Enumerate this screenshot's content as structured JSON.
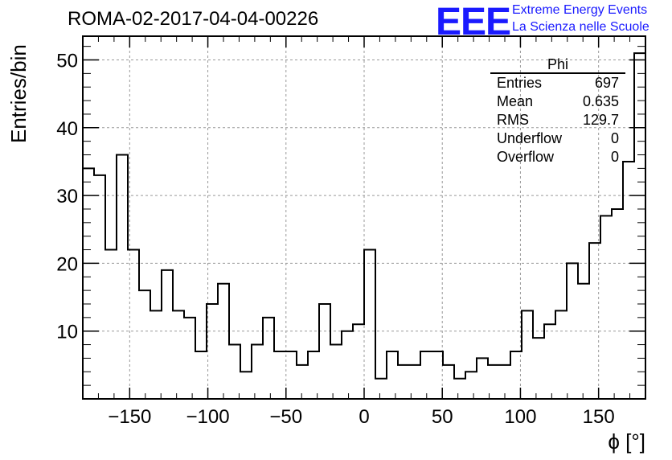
{
  "header": {
    "run_title": "ROMA-02-2017-04-04-00226",
    "logo_text": "EEE",
    "logo_line1": "Extreme Energy Events",
    "logo_line2": "La Scienza nelle Scuole",
    "logo_color": "#1a1aff"
  },
  "stats_box": {
    "title": "Phi",
    "rows": [
      {
        "label": "Entries",
        "value": "697"
      },
      {
        "label": "Mean",
        "value": "0.635"
      },
      {
        "label": "RMS",
        "value": "129.7"
      },
      {
        "label": "Underflow",
        "value": "0"
      },
      {
        "label": "Overflow",
        "value": "0"
      }
    ]
  },
  "chart_data": {
    "type": "histogram",
    "xlabel": "ϕ [°]",
    "ylabel": "Entries/bin",
    "xlim": [
      -180,
      180
    ],
    "ylim": [
      0,
      53.5
    ],
    "bin_width": 7.2,
    "x_ticks": [
      -150,
      -100,
      -50,
      0,
      50,
      100,
      150
    ],
    "x_tick_labels": [
      "−150",
      "−100",
      "−50",
      "0",
      "50",
      "100",
      "150"
    ],
    "y_ticks": [
      10,
      20,
      30,
      40,
      50
    ],
    "y_tick_labels": [
      "10",
      "20",
      "30",
      "40",
      "50"
    ],
    "grid": true,
    "values": [
      34,
      33,
      22,
      36,
      22,
      16,
      13,
      19,
      13,
      12,
      7,
      14,
      17,
      8,
      4,
      8,
      12,
      7,
      7,
      5,
      7,
      14,
      8,
      10,
      11,
      22,
      3,
      7,
      5,
      5,
      7,
      7,
      5,
      3,
      4,
      6,
      5,
      5,
      7,
      13,
      9,
      11,
      13,
      20,
      17,
      23,
      27,
      28,
      35,
      51
    ],
    "line_color": "#000000"
  }
}
